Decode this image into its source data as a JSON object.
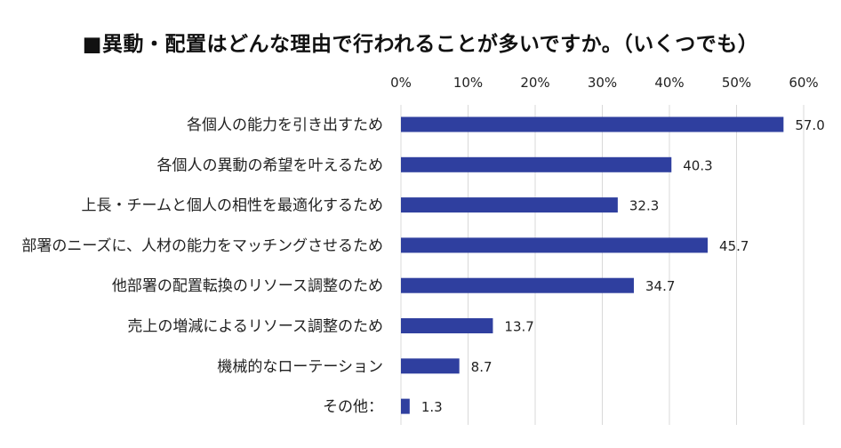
{
  "chart_data": {
    "type": "bar",
    "orientation": "horizontal",
    "title": "■異動・配置はどんな理由で行われることが多いですか。（いくつでも）",
    "categories": [
      "各個人の能力を引き出すため",
      "各個人の異動の希望を叶えるため",
      "上長・チームと個人の相性を最適化するため",
      "部署のニーズに、人材の能力をマッチングさせるため",
      "他部署の配置転換のリソース調整のため",
      "売上の増減によるリソース調整のため",
      "機械的なローテーション",
      "その他："
    ],
    "values": [
      57.0,
      40.3,
      32.3,
      45.7,
      34.7,
      13.7,
      8.7,
      1.3
    ],
    "value_labels": [
      "57.0",
      "40.3",
      "32.3",
      "45.7",
      "34.7",
      "13.7",
      "8.7",
      "1.3"
    ],
    "xlim": [
      0,
      60
    ],
    "xticks": [
      0,
      10,
      20,
      30,
      40,
      50,
      60
    ],
    "xtick_labels": [
      "0%",
      "10%",
      "20%",
      "30%",
      "40%",
      "50%",
      "60%"
    ],
    "xlabel": "",
    "ylabel": "",
    "grid": true,
    "bar_color": "#2F3F9F",
    "grid_color": "#D9D9D9"
  }
}
